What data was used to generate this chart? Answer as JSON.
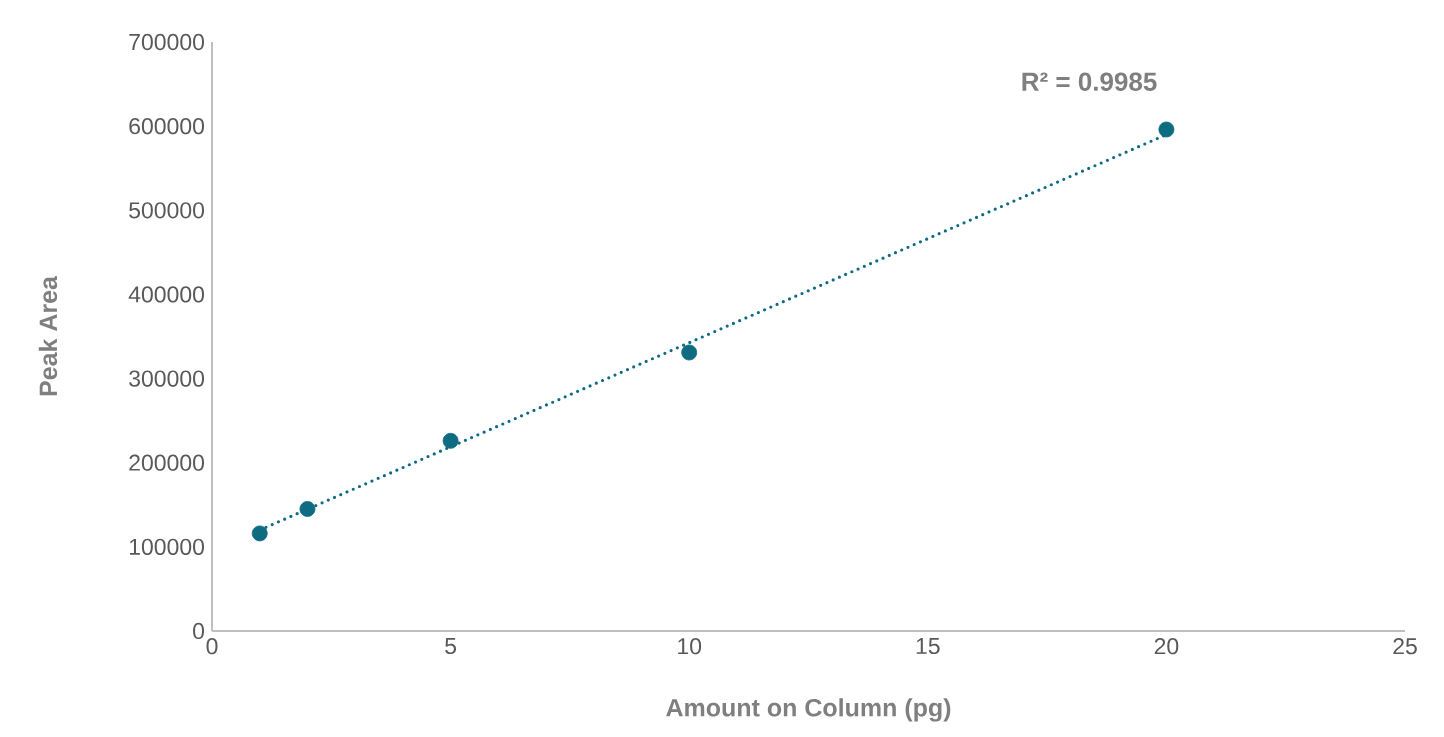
{
  "chart_data": {
    "type": "scatter",
    "xlabel": "Amount on Column (pg)",
    "ylabel": "Peak Area",
    "annotations": [
      "R² = 0.9985"
    ],
    "series": [
      {
        "color": "#0e6b82",
        "marker": "circle",
        "x": [
          1,
          2,
          5,
          10,
          20
        ],
        "values": [
          116000,
          145000,
          226000,
          331000,
          596000
        ]
      },
      {
        "type": "line",
        "color": "#0e6b82",
        "line_style": "dotted",
        "marker": "none",
        "x": [
          1,
          20
        ],
        "values": [
          120000,
          590000
        ]
      }
    ],
    "xlim": [
      0,
      25
    ],
    "ylim": [
      0,
      700000
    ],
    "xticks": [
      0,
      5,
      10,
      15,
      20,
      25
    ],
    "yticks": [
      0,
      100000,
      200000,
      300000,
      400000,
      500000,
      600000,
      700000
    ]
  }
}
